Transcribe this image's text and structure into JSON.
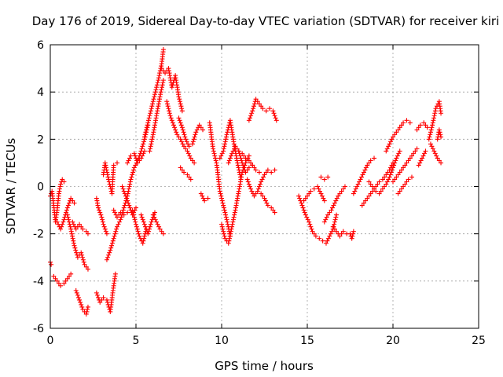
{
  "chart_data": {
    "type": "scatter",
    "title": "Day 176 of 2019, Sidereal Day-to-day VTEC variation (SDTVAR) for receiver kiri",
    "xlabel": "GPS time / hours",
    "ylabel": "SDTVAR / TECUs",
    "xlim": [
      0,
      25
    ],
    "ylim": [
      -6,
      6
    ],
    "xticks": [
      0,
      5,
      10,
      15,
      20,
      25
    ],
    "yticks": [
      -6,
      -4,
      -2,
      0,
      2,
      4,
      6
    ],
    "grid": true,
    "marker": "plus",
    "color": "#ff0000",
    "series": [
      {
        "name": "seg1",
        "x": [
          0.0,
          0.1,
          0.2,
          0.3,
          0.4,
          0.5,
          0.6,
          0.7,
          0.8
        ],
        "y": [
          -0.4,
          -0.2,
          -0.8,
          -1.5,
          -1.0,
          -0.3,
          0.1,
          0.3,
          0.2
        ]
      },
      {
        "name": "seg2",
        "x": [
          0.0,
          0.05
        ],
        "y": [
          -3.2,
          -3.3
        ]
      },
      {
        "name": "seg3",
        "x": [
          0.2,
          0.4,
          0.6,
          0.8,
          1.0,
          1.2
        ],
        "y": [
          -3.8,
          -4.0,
          -4.2,
          -4.1,
          -3.9,
          -3.7
        ]
      },
      {
        "name": "seg4",
        "x": [
          0.4,
          0.6,
          0.8,
          1.0,
          1.2,
          1.4
        ],
        "y": [
          -1.5,
          -1.8,
          -1.4,
          -0.9,
          -0.5,
          -0.7
        ]
      },
      {
        "name": "seg5",
        "x": [
          1.0,
          1.2,
          1.4,
          1.6,
          1.8,
          2.0,
          2.2
        ],
        "y": [
          -1.2,
          -1.8,
          -2.5,
          -3.0,
          -2.8,
          -3.3,
          -3.5
        ]
      },
      {
        "name": "seg6",
        "x": [
          1.3,
          1.5,
          1.7,
          1.9,
          2.1,
          2.2
        ],
        "y": [
          -1.5,
          -1.8,
          -1.6,
          -1.8,
          -1.9,
          -2.0
        ]
      },
      {
        "name": "seg7",
        "x": [
          1.5,
          1.7,
          1.9,
          2.1,
          2.2
        ],
        "y": [
          -4.4,
          -4.8,
          -5.2,
          -5.4,
          -5.1
        ]
      },
      {
        "name": "seg8",
        "x": [
          2.7,
          2.9,
          3.1,
          3.3,
          3.5,
          3.7,
          3.8
        ],
        "y": [
          -4.5,
          -4.9,
          -4.7,
          -4.8,
          -5.3,
          -4.2,
          -3.7
        ]
      },
      {
        "name": "seg9",
        "x": [
          2.7,
          2.8,
          3.0,
          3.1,
          3.3
        ],
        "y": [
          -0.5,
          -0.9,
          -1.3,
          -1.6,
          -2.0
        ]
      },
      {
        "name": "seg10",
        "x": [
          3.1,
          3.2,
          3.4,
          3.6,
          3.7,
          3.9
        ],
        "y": [
          0.5,
          1.0,
          0.3,
          -0.3,
          0.9,
          1.0
        ]
      },
      {
        "name": "seg11",
        "x": [
          3.3,
          3.5,
          3.7,
          3.9,
          4.1,
          4.3,
          4.5,
          4.7,
          4.9,
          5.1,
          5.3,
          5.5,
          5.7
        ],
        "y": [
          -3.1,
          -2.7,
          -2.2,
          -1.7,
          -1.4,
          -0.9,
          -0.4,
          0.3,
          0.8,
          1.1,
          1.5,
          2.0,
          2.6
        ]
      },
      {
        "name": "seg12",
        "x": [
          3.7,
          3.9,
          4.1,
          4.3,
          4.5
        ],
        "y": [
          -1.0,
          -1.3,
          -1.1,
          -1.2,
          -1.1
        ]
      },
      {
        "name": "seg13",
        "x": [
          4.2,
          4.4,
          4.6,
          4.8,
          5.0
        ],
        "y": [
          0.0,
          -0.4,
          -0.8,
          -1.2,
          -0.9
        ]
      },
      {
        "name": "seg14",
        "x": [
          4.5,
          4.7,
          4.9,
          5.1,
          5.3,
          5.5
        ],
        "y": [
          1.0,
          1.3,
          1.4,
          1.0,
          1.2,
          1.5
        ]
      },
      {
        "name": "seg15",
        "x": [
          4.8,
          5.0,
          5.2,
          5.4,
          5.6
        ],
        "y": [
          -1.0,
          -1.6,
          -2.1,
          -2.4,
          -1.8
        ]
      },
      {
        "name": "seg16",
        "x": [
          5.3,
          5.5,
          5.7,
          5.9,
          6.1
        ],
        "y": [
          -1.2,
          -1.6,
          -2.0,
          -1.5,
          -1.1
        ]
      },
      {
        "name": "seg17",
        "x": [
          5.5,
          5.7,
          5.9,
          6.1,
          6.3,
          6.5,
          6.6
        ],
        "y": [
          2.1,
          2.7,
          3.3,
          3.9,
          4.5,
          5.2,
          5.8
        ]
      },
      {
        "name": "seg18",
        "x": [
          5.8,
          6.0,
          6.2,
          6.4,
          6.6
        ],
        "y": [
          1.5,
          2.2,
          3.0,
          3.8,
          4.5
        ]
      },
      {
        "name": "seg19",
        "x": [
          6.0,
          6.2,
          6.4,
          6.6
        ],
        "y": [
          -1.2,
          -1.5,
          -1.8,
          -2.0
        ]
      },
      {
        "name": "seg20",
        "x": [
          6.5,
          6.7,
          6.9,
          7.1,
          7.3,
          7.5,
          7.7
        ],
        "y": [
          5.0,
          4.8,
          5.0,
          4.2,
          4.7,
          3.8,
          3.2
        ]
      },
      {
        "name": "seg21",
        "x": [
          6.8,
          7.0,
          7.2,
          7.4,
          7.6,
          7.8,
          8.0,
          8.2,
          8.4
        ],
        "y": [
          3.6,
          3.0,
          2.6,
          2.2,
          2.0,
          1.7,
          1.5,
          1.2,
          1.0
        ]
      },
      {
        "name": "seg22",
        "x": [
          7.5,
          7.7,
          7.9,
          8.1,
          8.3,
          8.5,
          8.7,
          8.9
        ],
        "y": [
          2.9,
          2.5,
          2.0,
          1.7,
          1.8,
          2.3,
          2.6,
          2.4
        ]
      },
      {
        "name": "seg23",
        "x": [
          7.6,
          7.8,
          8.0,
          8.2
        ],
        "y": [
          0.8,
          0.6,
          0.5,
          0.3
        ]
      },
      {
        "name": "seg24",
        "x": [
          8.8,
          9.0,
          9.2
        ],
        "y": [
          -0.3,
          -0.6,
          -0.5
        ]
      },
      {
        "name": "seg25",
        "x": [
          9.3,
          9.5,
          9.7,
          9.9,
          10.1,
          10.3,
          10.5
        ],
        "y": [
          2.7,
          1.6,
          1.0,
          -0.2,
          -0.8,
          -1.4,
          -2.1
        ]
      },
      {
        "name": "seg26",
        "x": [
          9.9,
          10.1,
          10.3,
          10.5,
          10.7,
          10.9,
          11.1
        ],
        "y": [
          1.2,
          1.5,
          2.2,
          2.8,
          1.9,
          1.1,
          0.4
        ]
      },
      {
        "name": "seg27",
        "x": [
          10.0,
          10.2,
          10.4,
          10.6,
          10.8,
          11.0,
          11.2,
          11.4,
          11.6
        ],
        "y": [
          -1.6,
          -2.2,
          -2.4,
          -1.7,
          -1.0,
          -0.2,
          0.6,
          1.0,
          1.3
        ]
      },
      {
        "name": "seg28",
        "x": [
          10.4,
          10.6,
          10.8,
          11.0,
          11.2,
          11.4,
          11.6,
          11.8
        ],
        "y": [
          1.0,
          1.4,
          1.7,
          1.5,
          1.0,
          0.6,
          0.8,
          0.9
        ]
      },
      {
        "name": "seg29",
        "x": [
          11.0,
          11.2,
          11.4,
          11.6,
          11.8,
          12.0,
          12.2
        ],
        "y": [
          1.5,
          1.4,
          1.2,
          1.1,
          0.9,
          0.7,
          0.6
        ]
      },
      {
        "name": "seg30",
        "x": [
          11.5,
          11.7,
          11.9,
          12.1,
          12.3,
          12.5,
          12.7,
          12.9,
          13.1
        ],
        "y": [
          0.3,
          -0.1,
          -0.4,
          -0.2,
          0.2,
          0.5,
          0.7,
          0.6,
          0.7
        ]
      },
      {
        "name": "seg31",
        "x": [
          11.6,
          11.8,
          12.0,
          12.2,
          12.4,
          12.6,
          12.8,
          13.0,
          13.2
        ],
        "y": [
          2.8,
          3.2,
          3.7,
          3.5,
          3.3,
          3.2,
          3.3,
          3.2,
          2.8
        ]
      },
      {
        "name": "seg32",
        "x": [
          12.3,
          12.5,
          12.7,
          12.9,
          13.1
        ],
        "y": [
          -0.3,
          -0.5,
          -0.8,
          -0.9,
          -1.1
        ]
      },
      {
        "name": "seg33",
        "x": [
          14.5,
          14.7,
          14.9,
          15.1,
          15.3,
          15.5,
          15.7,
          15.9,
          16.1,
          16.3,
          16.5,
          16.7
        ],
        "y": [
          -0.4,
          -0.8,
          -1.2,
          -1.5,
          -1.9,
          -2.1,
          -2.2,
          -2.3,
          -2.4,
          -2.1,
          -1.8,
          -1.2
        ]
      },
      {
        "name": "seg34",
        "x": [
          14.8,
          15.0,
          15.2,
          15.4,
          15.6,
          15.8,
          16.0
        ],
        "y": [
          -0.6,
          -0.4,
          -0.2,
          -0.1,
          0.0,
          -0.3,
          -0.6
        ]
      },
      {
        "name": "seg35",
        "x": [
          15.8,
          16.0,
          16.2
        ],
        "y": [
          0.4,
          0.3,
          0.4
        ]
      },
      {
        "name": "seg36",
        "x": [
          16.0,
          16.2,
          16.4,
          16.6,
          16.8,
          17.0,
          17.2
        ],
        "y": [
          -1.5,
          -1.2,
          -1.0,
          -0.7,
          -0.4,
          -0.2,
          0.0
        ]
      },
      {
        "name": "seg37",
        "x": [
          16.5,
          16.7,
          16.9,
          17.1,
          17.3
        ],
        "y": [
          -1.7,
          -1.9,
          -2.1,
          -1.9,
          -2.0
        ]
      },
      {
        "name": "seg38",
        "x": [
          17.5,
          17.6,
          17.7
        ],
        "y": [
          -2.0,
          -2.2,
          -1.9
        ]
      },
      {
        "name": "seg39",
        "x": [
          17.7,
          17.9,
          18.1,
          18.3,
          18.5,
          18.7,
          18.9
        ],
        "y": [
          -0.3,
          0.0,
          0.3,
          0.6,
          0.9,
          1.1,
          1.2
        ]
      },
      {
        "name": "seg40",
        "x": [
          18.2,
          18.4,
          18.6,
          18.8,
          19.0,
          19.2,
          19.4,
          19.6,
          19.8,
          20.0
        ],
        "y": [
          -0.8,
          -0.6,
          -0.4,
          -0.2,
          0.0,
          0.2,
          0.3,
          0.5,
          0.7,
          1.0
        ]
      },
      {
        "name": "seg41",
        "x": [
          18.6,
          18.8,
          19.0,
          19.2,
          19.4,
          19.6,
          19.8,
          20.0,
          20.2,
          20.4
        ],
        "y": [
          0.2,
          0.0,
          -0.2,
          -0.3,
          -0.1,
          0.1,
          0.4,
          0.8,
          1.2,
          1.5
        ]
      },
      {
        "name": "seg42",
        "x": [
          19.6,
          19.8,
          20.0,
          20.2,
          20.4,
          20.6,
          20.8,
          21.0
        ],
        "y": [
          1.5,
          1.8,
          2.1,
          2.3,
          2.5,
          2.7,
          2.8,
          2.7
        ]
      },
      {
        "name": "seg43",
        "x": [
          20.0,
          20.2,
          20.4,
          20.6,
          20.8,
          21.0,
          21.2,
          21.4
        ],
        "y": [
          0.2,
          0.4,
          0.6,
          0.8,
          1.0,
          1.2,
          1.4,
          1.6
        ]
      },
      {
        "name": "seg44",
        "x": [
          20.3,
          20.5,
          20.7,
          20.9,
          21.1
        ],
        "y": [
          -0.3,
          -0.1,
          0.1,
          0.3,
          0.4
        ]
      },
      {
        "name": "seg45",
        "x": [
          21.4,
          21.6,
          21.8,
          22.0
        ],
        "y": [
          2.4,
          2.6,
          2.7,
          2.5
        ]
      },
      {
        "name": "seg46",
        "x": [
          21.5,
          21.7,
          21.9
        ],
        "y": [
          0.9,
          1.2,
          1.5
        ]
      },
      {
        "name": "seg47",
        "x": [
          22.1,
          22.3,
          22.5,
          22.7,
          22.8
        ],
        "y": [
          2.0,
          2.6,
          3.3,
          3.6,
          3.1
        ]
      },
      {
        "name": "seg48",
        "x": [
          22.2,
          22.4,
          22.6,
          22.8
        ],
        "y": [
          1.8,
          1.5,
          1.2,
          1.0
        ]
      },
      {
        "name": "seg49",
        "x": [
          22.6,
          22.7,
          22.8
        ],
        "y": [
          2.0,
          2.4,
          2.1
        ]
      }
    ]
  }
}
